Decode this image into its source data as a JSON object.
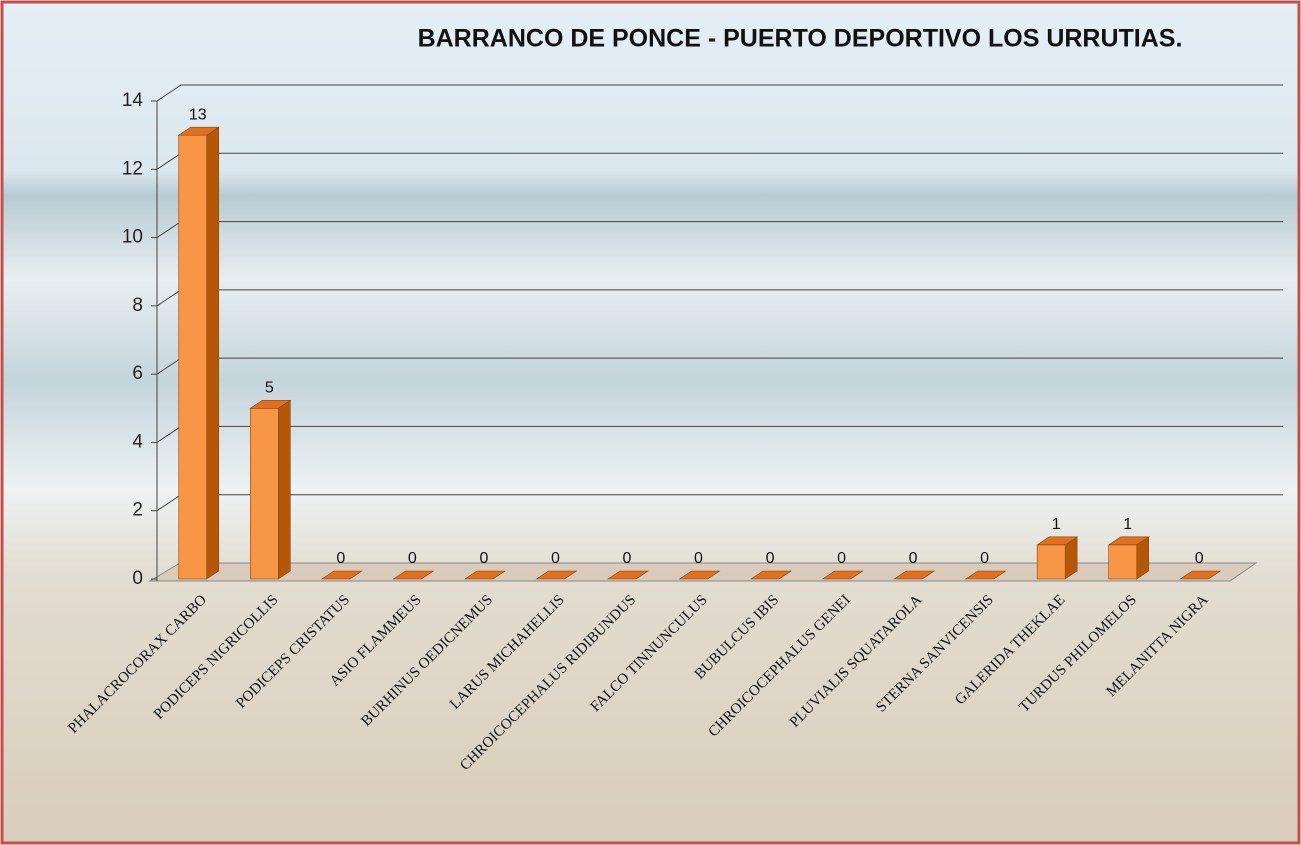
{
  "chart_data": {
    "type": "bar3d",
    "title": "BARRANCO DE PONCE - PUERTO DEPORTIVO LOS URRUTIAS.",
    "categories": [
      "PHALACROCORAX CARBO",
      "PODICEPS NIGRICOLLIS",
      "PODICEPS CRISTATUS",
      "ASIO FLAMMEUS",
      "BURHINUS OEDICNEMUS",
      "LARUS MICHAHELLIS",
      "CHROICOCEPHALUS RIDIBUNDUS",
      "FALCO TINNUNCULUS",
      "BUBULCUS IBIS",
      "CHROICOCEPHALUS GENEI",
      "PLUVIALIS SQUATAROLA",
      "STERNA SANVICENSIS",
      "GALERIDA THEKLAE",
      "TURDUS PHILOMELOS",
      "MELANITTA NIGRA"
    ],
    "values": [
      13,
      5,
      0,
      0,
      0,
      0,
      0,
      0,
      0,
      0,
      0,
      0,
      1,
      1,
      0
    ],
    "color": "#f79646",
    "ylim": [
      0,
      14
    ],
    "yticks": [
      0,
      2,
      4,
      6,
      8,
      10,
      12,
      14
    ],
    "grid": true
  }
}
